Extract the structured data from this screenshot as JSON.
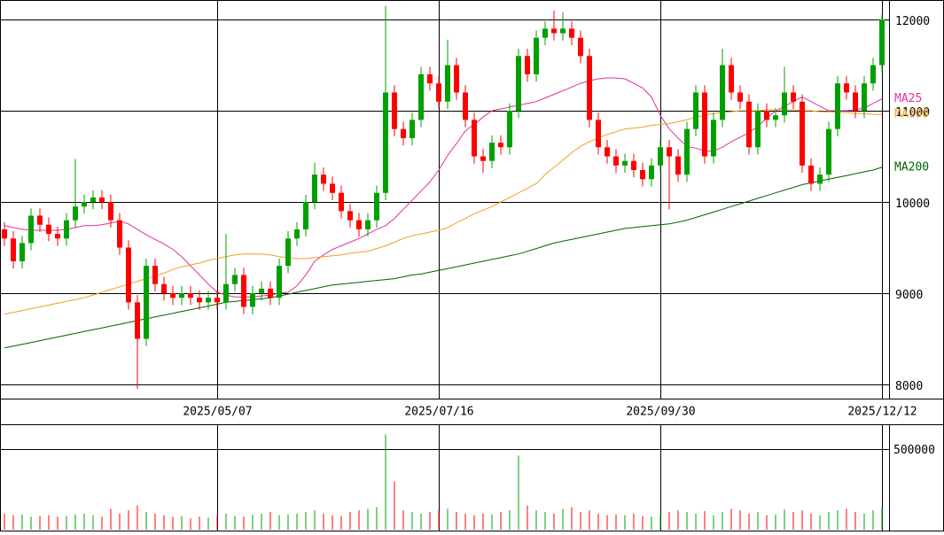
{
  "chart_data": [
    {
      "type": "candlestick",
      "categories": [
        null,
        null,
        null,
        null,
        null,
        null,
        null,
        null,
        null,
        null,
        null,
        null,
        null,
        null,
        null,
        null,
        null,
        null,
        null,
        null,
        null,
        null,
        null,
        null,
        "2025/05/07",
        null,
        null,
        null,
        null,
        null,
        null,
        null,
        null,
        null,
        null,
        null,
        null,
        null,
        null,
        null,
        null,
        null,
        null,
        null,
        null,
        null,
        null,
        null,
        null,
        "2025/07/16",
        null,
        null,
        null,
        null,
        null,
        null,
        null,
        null,
        null,
        null,
        null,
        null,
        null,
        null,
        null,
        null,
        null,
        null,
        null,
        null,
        null,
        null,
        null,
        null,
        "2025/09/30",
        null,
        null,
        null,
        null,
        null,
        null,
        null,
        null,
        null,
        null,
        null,
        null,
        null,
        null,
        null,
        null,
        null,
        null,
        null,
        null,
        null,
        null,
        null,
        null,
        "2025/12/12"
      ],
      "open": [
        9700,
        9600,
        9350,
        9550,
        9850,
        9750,
        9650,
        9600,
        9800,
        9950,
        10000,
        10050,
        10000,
        9800,
        9500,
        8900,
        8500,
        9300,
        9100,
        9000,
        8950,
        9000,
        8950,
        8900,
        8950,
        8900,
        9100,
        9200,
        8850,
        9000,
        9050,
        8950,
        9300,
        9600,
        9700,
        10000,
        10300,
        10200,
        10100,
        9900,
        9800,
        9700,
        9800,
        10100,
        11200,
        10800,
        10700,
        10900,
        11400,
        11300,
        11100,
        11500,
        11200,
        10900,
        10500,
        10450,
        10650,
        10600,
        11000,
        11600,
        11400,
        11800,
        11900,
        11850,
        11900,
        11800,
        11600,
        10900,
        10600,
        10500,
        10400,
        10450,
        10350,
        10250,
        10400,
        10600,
        10500,
        10300,
        10800,
        11200,
        10500,
        10900,
        11500,
        11200,
        11100,
        10600,
        11000,
        10900,
        10950,
        11200,
        11100,
        10400,
        10200,
        10300,
        10800,
        11300,
        11200,
        11000,
        11300,
        11500
      ],
      "high": [
        9780,
        9680,
        9630,
        9930,
        9930,
        9830,
        9730,
        9880,
        10470,
        10080,
        10130,
        10130,
        10080,
        9880,
        9580,
        8980,
        9380,
        9380,
        9180,
        9080,
        9080,
        9080,
        9030,
        9030,
        9030,
        9650,
        9280,
        9280,
        9080,
        9130,
        9130,
        9380,
        9680,
        9780,
        10080,
        10430,
        10380,
        10280,
        10180,
        9980,
        9880,
        9880,
        10180,
        12150,
        11280,
        10880,
        10980,
        11480,
        11480,
        11380,
        11780,
        11580,
        11280,
        10980,
        10580,
        10730,
        10730,
        11080,
        11680,
        11680,
        11880,
        11980,
        12100,
        12080,
        11980,
        11880,
        11680,
        10980,
        10680,
        10580,
        10530,
        10530,
        10430,
        10480,
        10680,
        10680,
        10580,
        10880,
        11280,
        11280,
        10980,
        11680,
        11580,
        11280,
        11180,
        11080,
        11080,
        11030,
        11480,
        11280,
        11180,
        10480,
        10380,
        10880,
        11380,
        11380,
        11280,
        11380,
        11580,
        12050
      ],
      "low": [
        9520,
        9270,
        9270,
        9470,
        9670,
        9570,
        9520,
        9520,
        9720,
        9870,
        9920,
        9920,
        9720,
        9420,
        8820,
        7950,
        8420,
        9020,
        8920,
        8870,
        8870,
        8870,
        8820,
        8820,
        8820,
        8820,
        9020,
        8770,
        8770,
        8920,
        8870,
        8870,
        9220,
        9520,
        9620,
        9920,
        10120,
        10020,
        9820,
        9720,
        9620,
        9620,
        9720,
        10020,
        10720,
        10620,
        10620,
        10820,
        11220,
        11020,
        11020,
        11120,
        10820,
        10420,
        10320,
        10370,
        10520,
        10520,
        10920,
        11320,
        11320,
        11720,
        11770,
        11770,
        11720,
        11520,
        10820,
        10520,
        10420,
        10320,
        10320,
        10270,
        10170,
        10170,
        10320,
        9920,
        10220,
        10220,
        10720,
        10420,
        10420,
        10820,
        11120,
        11020,
        10520,
        10520,
        10820,
        10820,
        10870,
        11020,
        10320,
        10120,
        10120,
        10220,
        10720,
        11120,
        10920,
        10920,
        11220,
        11420
      ],
      "close": [
        9600,
        9350,
        9550,
        9850,
        9750,
        9650,
        9600,
        9800,
        9950,
        10000,
        10050,
        10000,
        9800,
        9500,
        8900,
        8500,
        9300,
        9100,
        9000,
        8950,
        9000,
        8950,
        8900,
        8950,
        8900,
        9100,
        9200,
        8850,
        9000,
        9050,
        8950,
        9300,
        9600,
        9700,
        10000,
        10300,
        10200,
        10100,
        9900,
        9800,
        9700,
        9800,
        10100,
        11200,
        10800,
        10700,
        10900,
        11400,
        11300,
        11100,
        11500,
        11200,
        10900,
        10500,
        10450,
        10650,
        10600,
        11000,
        11600,
        11400,
        11800,
        11900,
        11850,
        11900,
        11800,
        11600,
        10900,
        10600,
        10500,
        10400,
        10450,
        10350,
        10250,
        10400,
        10600,
        10500,
        10300,
        10800,
        11200,
        10500,
        10900,
        11500,
        11200,
        11100,
        10600,
        11000,
        10900,
        10950,
        11200,
        11100,
        10400,
        10200,
        10300,
        10800,
        11300,
        11200,
        11000,
        11300,
        11500,
        12000
      ],
      "up_color": "#00a000",
      "down_color": "#ff0000",
      "series": [
        {
          "name": "MA25",
          "color": "#e0309c",
          "values": [
            9740,
            9720,
            9700,
            9690,
            9690,
            9690,
            9690,
            9700,
            9720,
            9740,
            9740,
            9750,
            9770,
            9790,
            9760,
            9700,
            9640,
            9590,
            9540,
            9480,
            9400,
            9300,
            9200,
            9100,
            9010,
            8980,
            8960,
            8960,
            8960,
            8970,
            8980,
            9000,
            9010,
            9080,
            9200,
            9350,
            9420,
            9480,
            9520,
            9560,
            9600,
            9650,
            9700,
            9740,
            9820,
            9920,
            10020,
            10120,
            10220,
            10350,
            10510,
            10640,
            10780,
            10850,
            10930,
            11000,
            11020,
            11040,
            11060,
            11080,
            11100,
            11140,
            11180,
            11220,
            11260,
            11300,
            11330,
            11350,
            11360,
            11360,
            11350,
            11300,
            11250,
            11150,
            10950,
            10800,
            10700,
            10610,
            10590,
            10560,
            10560,
            10600,
            10660,
            10710,
            10760,
            10830,
            10920,
            11000,
            11050,
            11100,
            11150,
            11100,
            11050,
            11000,
            11000,
            11000,
            11010,
            11030,
            11080,
            11130
          ]
        },
        {
          "name": "MA100",
          "color": "#f0a020",
          "values": [
            8770,
            8790,
            8810,
            8830,
            8850,
            8870,
            8890,
            8910,
            8930,
            8950,
            8980,
            9010,
            9040,
            9070,
            9100,
            9130,
            9160,
            9190,
            9220,
            9260,
            9290,
            9310,
            9330,
            9360,
            9380,
            9400,
            9420,
            9430,
            9430,
            9430,
            9420,
            9400,
            9390,
            9380,
            9380,
            9390,
            9400,
            9410,
            9420,
            9440,
            9450,
            9460,
            9490,
            9520,
            9560,
            9600,
            9630,
            9650,
            9670,
            9690,
            9720,
            9770,
            9820,
            9870,
            9910,
            9950,
            10000,
            10050,
            10100,
            10150,
            10200,
            10300,
            10380,
            10460,
            10540,
            10610,
            10660,
            10700,
            10740,
            10770,
            10800,
            10810,
            10820,
            10840,
            10850,
            10860,
            10880,
            10900,
            10930,
            10950,
            10970,
            10980,
            10990,
            11000,
            11000,
            11000,
            11010,
            11010,
            11010,
            11010,
            11000,
            11000,
            10990,
            10990,
            10980,
            10980,
            10970,
            10970,
            10960,
            10960
          ]
        },
        {
          "name": "MA200",
          "color": "#006400",
          "values": [
            8400,
            8420,
            8440,
            8460,
            8480,
            8500,
            8520,
            8540,
            8560,
            8580,
            8600,
            8620,
            8640,
            8660,
            8680,
            8700,
            8720,
            8740,
            8760,
            8780,
            8800,
            8820,
            8840,
            8860,
            8880,
            8900,
            8910,
            8920,
            8930,
            8940,
            8950,
            8970,
            8990,
            9010,
            9030,
            9050,
            9070,
            9090,
            9100,
            9110,
            9120,
            9130,
            9140,
            9150,
            9160,
            9180,
            9200,
            9210,
            9230,
            9250,
            9270,
            9290,
            9310,
            9330,
            9350,
            9370,
            9390,
            9410,
            9430,
            9460,
            9490,
            9520,
            9550,
            9570,
            9590,
            9610,
            9630,
            9650,
            9670,
            9690,
            9710,
            9720,
            9730,
            9740,
            9750,
            9760,
            9780,
            9800,
            9830,
            9860,
            9890,
            9920,
            9950,
            9980,
            10010,
            10040,
            10070,
            10100,
            10130,
            10160,
            10190,
            10210,
            10230,
            10250,
            10270,
            10290,
            10310,
            10330,
            10350,
            10380
          ]
        }
      ],
      "ylim": [
        7845,
        12214
      ],
      "yticks": [
        8000,
        9000,
        10000,
        11000,
        12000
      ],
      "grid": true
    },
    {
      "type": "bar",
      "values": [
        100000,
        90000,
        95000,
        80000,
        85000,
        90000,
        80000,
        85000,
        95000,
        100000,
        90000,
        80000,
        130000,
        100000,
        120000,
        150000,
        110000,
        100000,
        90000,
        80000,
        85000,
        70000,
        80000,
        75000,
        90000,
        100000,
        85000,
        80000,
        95000,
        100000,
        110000,
        90000,
        95000,
        100000,
        110000,
        120000,
        100000,
        90000,
        85000,
        110000,
        120000,
        130000,
        140000,
        590000,
        300000,
        120000,
        110000,
        100000,
        110000,
        120000,
        130000,
        110000,
        100000,
        90000,
        100000,
        95000,
        110000,
        120000,
        460000,
        150000,
        120000,
        110000,
        100000,
        130000,
        140000,
        110000,
        120000,
        100000,
        90000,
        95000,
        90000,
        100000,
        85000,
        80000,
        90000,
        110000,
        120000,
        110000,
        100000,
        115000,
        90000,
        110000,
        130000,
        120000,
        100000,
        110000,
        90000,
        95000,
        125000,
        110000,
        120000,
        100000,
        90000,
        110000,
        120000,
        130000,
        110000,
        100000,
        120000,
        140000
      ],
      "ylim": [
        0,
        648000
      ],
      "yticks": [
        500000
      ],
      "grid": true
    }
  ]
}
